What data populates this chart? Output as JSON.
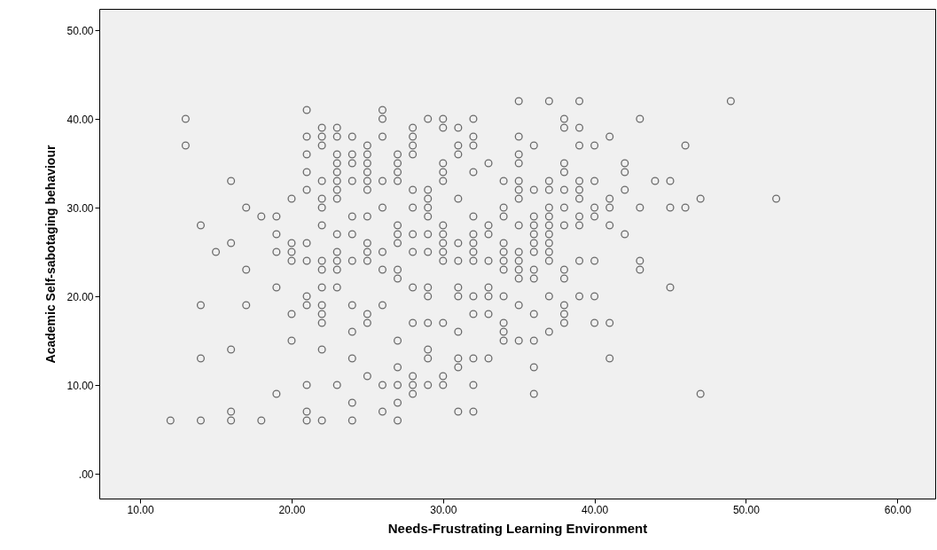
{
  "chart_data": {
    "type": "scatter",
    "xlabel": "Needs-Frustrating Learning Environment",
    "ylabel": "Academic Self-sabotaging behaviour",
    "marker": "circle",
    "grid": false,
    "xlim": [
      7.3,
      62.5
    ],
    "ylim": [
      -2.8,
      52.4
    ],
    "xticks": [
      {
        "value": 10,
        "label": "10.00"
      },
      {
        "value": 20,
        "label": "20.00"
      },
      {
        "value": 30,
        "label": "30.00"
      },
      {
        "value": 40,
        "label": "40.00"
      },
      {
        "value": 50,
        "label": "50.00"
      },
      {
        "value": 60,
        "label": "60.00"
      }
    ],
    "yticks": [
      {
        "value": 0,
        "label": ".00"
      },
      {
        "value": 10,
        "label": "10.00"
      },
      {
        "value": 20,
        "label": "20.00"
      },
      {
        "value": 30,
        "label": "30.00"
      },
      {
        "value": 40,
        "label": "40.00"
      },
      {
        "value": 50,
        "label": "50.00"
      }
    ],
    "series": [
      {
        "color": "#333333",
        "x": [
          12,
          13,
          13,
          14,
          14,
          14,
          14,
          15,
          16,
          16,
          16,
          16,
          16,
          17,
          17,
          17,
          18,
          18,
          19,
          19,
          19,
          19,
          19,
          20,
          20,
          20,
          20,
          20,
          20,
          21,
          21,
          21,
          21,
          21,
          21,
          21,
          21,
          21,
          21,
          21,
          21,
          22,
          22,
          22,
          22,
          22,
          22,
          22,
          22,
          22,
          22,
          22,
          22,
          22,
          22,
          22,
          23,
          23,
          23,
          23,
          23,
          23,
          23,
          23,
          23,
          23,
          23,
          23,
          23,
          23,
          24,
          24,
          24,
          24,
          24,
          24,
          24,
          24,
          24,
          24,
          24,
          24,
          25,
          25,
          25,
          25,
          25,
          25,
          25,
          25,
          25,
          25,
          25,
          25,
          25,
          26,
          26,
          26,
          26,
          26,
          26,
          26,
          26,
          26,
          26,
          27,
          27,
          27,
          27,
          27,
          27,
          27,
          27,
          27,
          27,
          27,
          27,
          27,
          27,
          28,
          28,
          28,
          28,
          28,
          28,
          28,
          28,
          28,
          28,
          28,
          28,
          28,
          29,
          29,
          29,
          29,
          29,
          29,
          29,
          29,
          29,
          29,
          29,
          29,
          29,
          30,
          30,
          30,
          30,
          30,
          30,
          30,
          30,
          30,
          30,
          30,
          30,
          30,
          31,
          31,
          31,
          31,
          31,
          31,
          31,
          31,
          31,
          31,
          31,
          31,
          32,
          32,
          32,
          32,
          32,
          32,
          32,
          32,
          32,
          32,
          32,
          32,
          32,
          32,
          33,
          33,
          33,
          33,
          33,
          33,
          33,
          33,
          34,
          34,
          34,
          34,
          34,
          34,
          34,
          34,
          34,
          34,
          34,
          35,
          35,
          35,
          35,
          35,
          35,
          35,
          35,
          35,
          35,
          35,
          35,
          35,
          35,
          36,
          36,
          36,
          36,
          36,
          36,
          36,
          36,
          36,
          36,
          36,
          36,
          36,
          37,
          37,
          37,
          37,
          37,
          37,
          37,
          37,
          37,
          37,
          37,
          37,
          38,
          38,
          38,
          38,
          38,
          38,
          38,
          38,
          38,
          38,
          38,
          38,
          39,
          39,
          39,
          39,
          39,
          39,
          39,
          39,
          39,
          39,
          40,
          40,
          40,
          40,
          40,
          40,
          40,
          41,
          41,
          41,
          41,
          41,
          41,
          42,
          42,
          42,
          42,
          43,
          43,
          43,
          43,
          44,
          45,
          45,
          45,
          46,
          46,
          47,
          47,
          49,
          52
        ],
        "values": [
          6,
          40,
          37,
          28,
          19,
          13,
          6,
          25,
          33,
          26,
          14,
          7,
          6,
          30,
          23,
          19,
          29,
          6,
          29,
          27,
          25,
          21,
          9,
          31,
          26,
          25,
          24,
          18,
          15,
          41,
          38,
          36,
          34,
          32,
          26,
          24,
          20,
          19,
          10,
          7,
          6,
          39,
          38,
          37,
          33,
          31,
          30,
          28,
          24,
          23,
          21,
          19,
          18,
          17,
          14,
          6,
          39,
          38,
          36,
          35,
          34,
          33,
          32,
          31,
          27,
          25,
          24,
          23,
          21,
          10,
          38,
          36,
          35,
          33,
          29,
          27,
          24,
          19,
          16,
          13,
          8,
          6,
          37,
          36,
          35,
          34,
          33,
          32,
          29,
          26,
          25,
          24,
          18,
          17,
          11,
          41,
          40,
          38,
          33,
          30,
          25,
          23,
          19,
          10,
          7,
          36,
          35,
          34,
          33,
          28,
          27,
          26,
          23,
          22,
          15,
          12,
          10,
          8,
          6,
          39,
          38,
          37,
          36,
          32,
          30,
          27,
          25,
          21,
          17,
          11,
          10,
          9,
          40,
          32,
          31,
          30,
          29,
          27,
          25,
          21,
          20,
          17,
          14,
          13,
          10,
          40,
          39,
          35,
          34,
          33,
          28,
          27,
          26,
          25,
          24,
          17,
          11,
          10,
          39,
          37,
          36,
          31,
          26,
          24,
          21,
          20,
          16,
          13,
          12,
          7,
          40,
          38,
          37,
          34,
          29,
          27,
          26,
          25,
          24,
          20,
          18,
          13,
          10,
          7,
          35,
          28,
          27,
          24,
          21,
          20,
          18,
          13,
          33,
          30,
          29,
          26,
          25,
          24,
          23,
          20,
          17,
          16,
          15,
          42,
          38,
          36,
          35,
          33,
          32,
          31,
          28,
          25,
          24,
          23,
          22,
          19,
          15,
          37,
          32,
          29,
          28,
          27,
          26,
          25,
          23,
          22,
          18,
          15,
          12,
          9,
          42,
          33,
          32,
          30,
          29,
          28,
          27,
          26,
          25,
          24,
          20,
          16,
          40,
          39,
          35,
          34,
          32,
          30,
          28,
          23,
          22,
          19,
          18,
          17,
          42,
          39,
          37,
          33,
          32,
          31,
          29,
          28,
          24,
          20,
          37,
          33,
          30,
          29,
          24,
          20,
          17,
          38,
          31,
          30,
          28,
          17,
          13,
          35,
          34,
          32,
          27,
          40,
          30,
          24,
          23,
          33,
          33,
          30,
          21,
          37,
          30,
          31,
          9,
          42,
          31
        ]
      }
    ]
  }
}
